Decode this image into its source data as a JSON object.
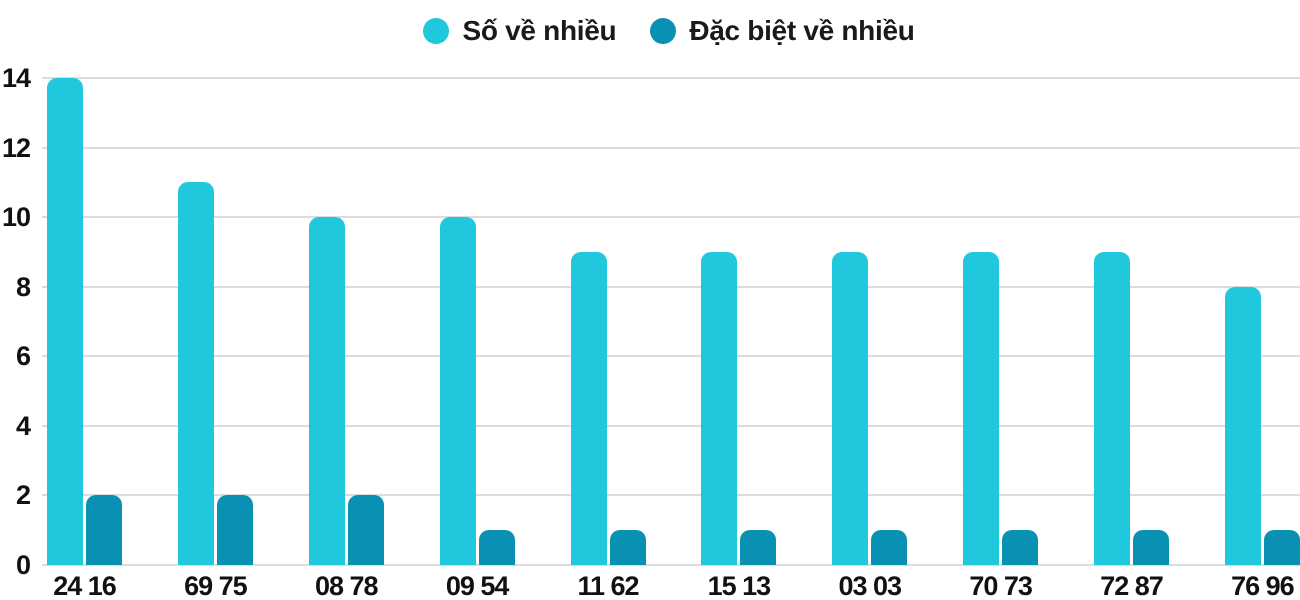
{
  "legend": {
    "items": [
      {
        "label": "Số về nhiều",
        "slug": "so-ve-nhieu",
        "color": "#1FC8DC"
      },
      {
        "label": "Đặc biệt về nhiều",
        "slug": "dac-biet-ve-nhieu",
        "color": "#0991B3"
      }
    ]
  },
  "axes": {
    "y_tick_labels": [
      "0",
      "2",
      "4",
      "6",
      "8",
      "10",
      "12",
      "14"
    ]
  },
  "chart_data": {
    "type": "bar",
    "title": "",
    "categories": [
      "24 16",
      "69 75",
      "08 78",
      "09 54",
      "11 62",
      "15 13",
      "03 03",
      "70 73",
      "72 87",
      "76 96"
    ],
    "series": [
      {
        "name": "Số về nhiều",
        "slug": "so-ve-nhieu",
        "color": "#1FC8DC",
        "values": [
          14,
          11,
          10,
          10,
          9,
          9,
          9,
          9,
          9,
          8
        ]
      },
      {
        "name": "Đặc biệt về nhiều",
        "slug": "dac-biet-ve-nhieu",
        "color": "#0991B3",
        "values": [
          2,
          2,
          2,
          1,
          1,
          1,
          1,
          1,
          1,
          1
        ]
      }
    ],
    "yticks": [
      0,
      2,
      4,
      6,
      8,
      10,
      12,
      14
    ],
    "ylim": [
      0,
      14
    ],
    "grid": true,
    "legend_position": "top-center",
    "xlabel": "",
    "ylabel": "",
    "colors": {
      "gridline": "#DCDCDC",
      "axis_text": "#111111",
      "legend_text": "#1A1A1A",
      "background": "#FFFFFF"
    }
  }
}
